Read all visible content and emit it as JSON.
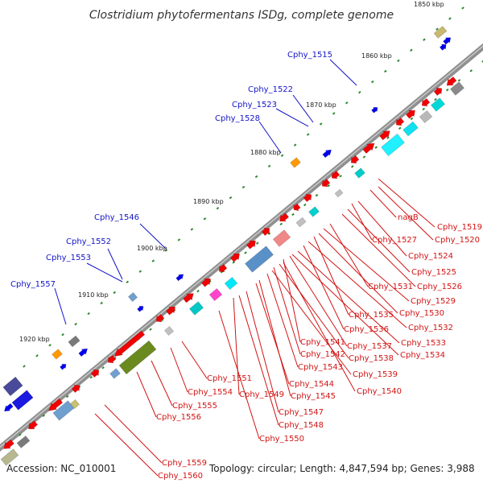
{
  "title": "Clostridium phytofermentans ISDg, complete genome",
  "footer": {
    "accession": "Accession: NC_010001",
    "topology": "Topology: circular; Length: 4,847,594 bp; Genes: 3,988"
  },
  "kbp_ticks": [
    "1850 kbp",
    "1860 kbp",
    "1870 kbp",
    "1880 kbp",
    "1890 kbp",
    "1900 kbp",
    "1910 kbp",
    "1920 kbp"
  ],
  "colors": {
    "backbone": "#8f8f8f",
    "label_upper": "#1414c8",
    "label_lower": "#d21414"
  },
  "upper_labels": [
    "Cphy_1515",
    "Cphy_1522",
    "Cphy_1523",
    "Cphy_1528",
    "Cphy_1546",
    "Cphy_1552",
    "Cphy_1553",
    "Cphy_1557"
  ],
  "lower_labels": [
    "Cphy_1519",
    "Cphy_1520",
    "nagB",
    "Cphy_1524",
    "Cphy_1527",
    "Cphy_1525",
    "Cphy_1526",
    "Cphy_1531",
    "Cphy_1529",
    "Cphy_1530",
    "Cphy_1535",
    "Cphy_1532",
    "Cphy_1536",
    "Cphy_1533",
    "Cphy_1541",
    "Cphy_1537",
    "Cphy_1534",
    "Cphy_1542",
    "Cphy_1538",
    "Cphy_1543",
    "Cphy_1539",
    "Cphy_1551",
    "Cphy_1544",
    "Cphy_1554",
    "Cphy_1549",
    "Cphy_1545",
    "Cphy_1540",
    "Cphy_1555",
    "Cphy_1547",
    "Cphy_1556",
    "Cphy_1548",
    "Cphy_1550",
    "Cphy_1559",
    "Cphy_1560"
  ]
}
